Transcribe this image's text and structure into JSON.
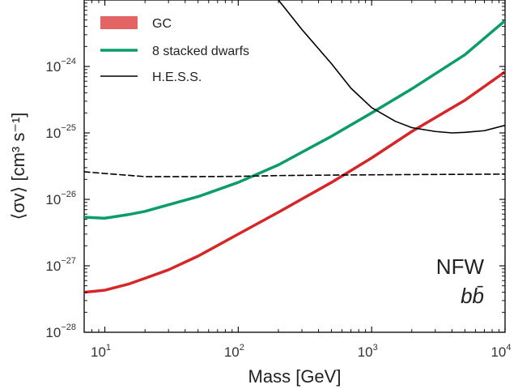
{
  "chart_data": {
    "type": "line",
    "title": "",
    "xlabel": "Mass [GeV]",
    "ylabel": "⟨σv⟩ [cm³ s⁻¹]",
    "xscale": "log",
    "yscale": "log",
    "xlim": [
      7,
      10000
    ],
    "ylim": [
      1e-28,
      1e-23
    ],
    "grid": false,
    "legend_position": "top-left",
    "x_ticks": [
      {
        "base": "10",
        "exp": "1",
        "value": 10
      },
      {
        "base": "10",
        "exp": "2",
        "value": 100
      },
      {
        "base": "10",
        "exp": "3",
        "value": 1000
      },
      {
        "base": "10",
        "exp": "4",
        "value": 10000
      }
    ],
    "y_ticks": [
      {
        "base": "10",
        "exp": "−28",
        "value": 1e-28
      },
      {
        "base": "10",
        "exp": "−27",
        "value": 1e-27
      },
      {
        "base": "10",
        "exp": "−26",
        "value": 1e-26
      },
      {
        "base": "10",
        "exp": "−25",
        "value": 1e-25
      },
      {
        "base": "10",
        "exp": "−24",
        "value": 1e-24
      }
    ],
    "series": [
      {
        "name": "GC",
        "color": "#d62728",
        "x": [
          7,
          10,
          15,
          20,
          30,
          50,
          100,
          200,
          500,
          1000,
          2000,
          5000,
          10000
        ],
        "y": [
          4e-28,
          4.3e-28,
          5.3e-28,
          6.5e-28,
          8.7e-28,
          1.4e-27,
          3e-27,
          6.4e-27,
          1.8e-26,
          4.2e-26,
          1.05e-25,
          3.1e-25,
          8.3e-25
        ]
      },
      {
        "name": "8 stacked dwarfs",
        "color": "#0c9c6c",
        "x": [
          7,
          10,
          15,
          20,
          30,
          50,
          100,
          200,
          500,
          1000,
          2000,
          5000,
          10000
        ],
        "y": [
          5.4e-27,
          5.2e-27,
          5.9e-27,
          6.6e-27,
          8.3e-27,
          1.1e-26,
          1.8e-26,
          3.3e-26,
          8.9e-26,
          2e-25,
          4.6e-25,
          1.5e-24,
          4.9e-24
        ]
      },
      {
        "name": "H.E.S.S.",
        "color": "#000000",
        "style": "solid",
        "x": [
          200,
          300,
          500,
          700,
          1000,
          1500,
          2000,
          3000,
          4000,
          5000,
          7000,
          10000
        ],
        "y": [
          1e-23,
          3.6e-24,
          1.1e-24,
          4.7e-25,
          2.4e-25,
          1.5e-25,
          1.2e-25,
          1.05e-25,
          1e-25,
          1.02e-25,
          1.08e-25,
          1.3e-25
        ]
      },
      {
        "name": "",
        "color": "#000000",
        "style": "dashed",
        "x": [
          7,
          10,
          20,
          50,
          100,
          200,
          500,
          1000,
          2000,
          5000,
          10000
        ],
        "y": [
          2.6e-26,
          2.45e-26,
          2.2e-26,
          2.2e-26,
          2.22e-26,
          2.28e-26,
          2.32e-26,
          2.34e-26,
          2.36e-26,
          2.38e-26,
          2.4e-26
        ]
      }
    ],
    "legend": [
      {
        "label": "GC",
        "kind": "patch",
        "color": "#e46466"
      },
      {
        "label": "8 stacked dwarfs",
        "kind": "line",
        "color": "#0c9c6c"
      },
      {
        "label": "H.E.S.S.",
        "kind": "line",
        "color": "#000000"
      }
    ],
    "annotations": [
      {
        "text": "NFW"
      },
      {
        "text": "bb̄"
      }
    ]
  }
}
